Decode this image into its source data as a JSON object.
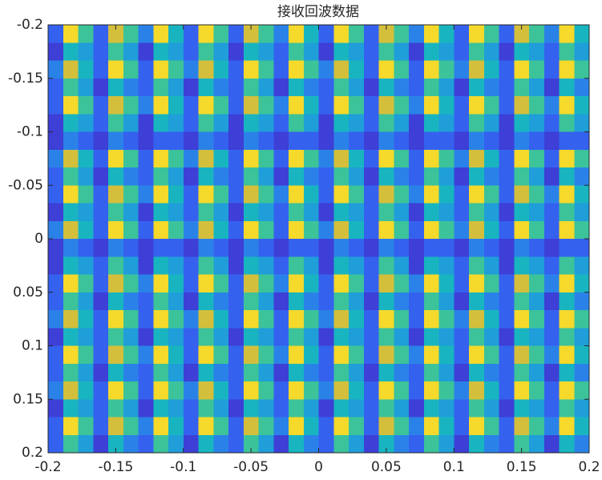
{
  "chart_data": {
    "type": "heatmap",
    "title": "接收回波数据",
    "xlim": [
      -0.2,
      0.2
    ],
    "ylim": [
      -0.2,
      0.2
    ],
    "ydir": "reverse",
    "xticks": [
      -0.2,
      -0.15,
      -0.1,
      -0.05,
      0,
      0.05,
      0.1,
      0.15,
      0.2
    ],
    "yticks": [
      -0.2,
      -0.15,
      -0.1,
      -0.05,
      0,
      0.05,
      0.1,
      0.15,
      0.2
    ],
    "clim": [
      0,
      9
    ],
    "colormap": [
      "#3b2ea8",
      "#3d3fd6",
      "#3561ef",
      "#2a82e8",
      "#1f9ed9",
      "#18b5c0",
      "#3cc39a",
      "#8ec66a",
      "#d3bf3c",
      "#f5d92b"
    ],
    "z": [
      [
        2,
        9,
        6,
        2,
        8,
        6,
        3,
        9,
        5,
        2,
        9,
        6,
        2,
        8,
        6,
        3,
        9,
        5,
        2,
        9,
        6,
        2,
        8,
        6,
        3,
        9,
        5,
        2,
        9,
        6,
        2,
        8,
        6,
        3,
        9,
        5
      ],
      [
        1,
        5,
        4,
        2,
        6,
        4,
        1,
        5,
        4,
        2,
        6,
        4,
        1,
        5,
        4,
        2,
        6,
        4,
        1,
        5,
        4,
        2,
        6,
        4,
        1,
        5,
        4,
        2,
        6,
        4,
        1,
        5,
        4,
        2,
        6,
        4
      ],
      [
        3,
        8,
        5,
        2,
        9,
        6,
        2,
        9,
        6,
        3,
        8,
        5,
        2,
        9,
        6,
        2,
        9,
        6,
        3,
        8,
        5,
        2,
        9,
        6,
        2,
        9,
        6,
        3,
        8,
        5,
        2,
        9,
        6,
        2,
        9,
        6
      ],
      [
        2,
        6,
        4,
        1,
        5,
        3,
        2,
        6,
        4,
        1,
        5,
        3,
        2,
        6,
        4,
        1,
        5,
        3,
        2,
        6,
        4,
        1,
        5,
        3,
        2,
        6,
        4,
        1,
        5,
        3,
        2,
        6,
        4,
        1,
        5,
        3
      ],
      [
        2,
        9,
        6,
        2,
        8,
        6,
        3,
        9,
        5,
        2,
        9,
        6,
        2,
        8,
        6,
        3,
        9,
        5,
        2,
        9,
        6,
        2,
        8,
        6,
        3,
        9,
        5,
        2,
        9,
        6,
        2,
        8,
        6,
        3,
        9,
        5
      ],
      [
        1,
        5,
        4,
        2,
        6,
        4,
        1,
        5,
        4,
        2,
        6,
        4,
        1,
        5,
        4,
        2,
        6,
        4,
        1,
        5,
        4,
        2,
        6,
        4,
        1,
        5,
        4,
        2,
        6,
        4,
        1,
        5,
        4,
        2,
        6,
        4
      ],
      [
        1,
        3,
        2,
        1,
        3,
        2,
        1,
        2,
        2,
        1,
        3,
        2,
        1,
        3,
        2,
        1,
        2,
        2,
        1,
        3,
        2,
        1,
        3,
        2,
        1,
        2,
        2,
        1,
        3,
        2,
        1,
        3,
        2,
        1,
        2,
        2
      ],
      [
        3,
        8,
        5,
        2,
        9,
        6,
        2,
        9,
        6,
        3,
        8,
        5,
        2,
        9,
        6,
        2,
        9,
        6,
        3,
        8,
        5,
        2,
        9,
        6,
        2,
        9,
        6,
        3,
        8,
        5,
        2,
        9,
        6,
        2,
        9,
        6
      ],
      [
        2,
        6,
        4,
        1,
        5,
        3,
        2,
        6,
        4,
        1,
        5,
        3,
        2,
        6,
        4,
        1,
        5,
        3,
        2,
        6,
        4,
        1,
        5,
        3,
        2,
        6,
        4,
        1,
        5,
        3,
        2,
        6,
        4,
        1,
        5,
        3
      ],
      [
        2,
        9,
        6,
        2,
        8,
        6,
        3,
        9,
        5,
        2,
        9,
        6,
        2,
        8,
        6,
        3,
        9,
        5,
        2,
        9,
        6,
        2,
        8,
        6,
        3,
        9,
        5,
        2,
        9,
        6,
        2,
        8,
        6,
        3,
        9,
        5
      ],
      [
        1,
        5,
        4,
        2,
        6,
        4,
        1,
        5,
        4,
        2,
        6,
        4,
        1,
        5,
        4,
        2,
        6,
        4,
        1,
        5,
        4,
        2,
        6,
        4,
        1,
        5,
        4,
        2,
        6,
        4,
        1,
        5,
        4,
        2,
        6,
        4
      ],
      [
        3,
        8,
        5,
        2,
        9,
        6,
        2,
        9,
        6,
        3,
        8,
        5,
        2,
        9,
        6,
        2,
        9,
        6,
        3,
        8,
        5,
        2,
        9,
        6,
        2,
        9,
        6,
        3,
        8,
        5,
        2,
        9,
        6,
        2,
        9,
        6
      ],
      [
        1,
        3,
        2,
        1,
        3,
        2,
        1,
        2,
        2,
        1,
        3,
        2,
        1,
        3,
        2,
        1,
        2,
        2,
        1,
        3,
        2,
        1,
        3,
        2,
        1,
        2,
        2,
        1,
        3,
        2,
        1,
        3,
        2,
        1,
        2,
        2
      ],
      [
        1,
        5,
        4,
        2,
        6,
        4,
        1,
        5,
        4,
        2,
        6,
        4,
        1,
        5,
        4,
        2,
        6,
        4,
        1,
        5,
        4,
        2,
        6,
        4,
        1,
        5,
        4,
        2,
        6,
        4,
        1,
        5,
        4,
        2,
        6,
        4
      ],
      [
        2,
        9,
        6,
        2,
        8,
        6,
        3,
        9,
        5,
        2,
        9,
        6,
        2,
        8,
        6,
        3,
        9,
        5,
        2,
        9,
        6,
        2,
        8,
        6,
        3,
        9,
        5,
        2,
        9,
        6,
        2,
        8,
        6,
        3,
        9,
        5
      ],
      [
        2,
        6,
        4,
        1,
        5,
        3,
        2,
        6,
        4,
        1,
        5,
        3,
        2,
        6,
        4,
        1,
        5,
        3,
        2,
        6,
        4,
        1,
        5,
        3,
        2,
        6,
        4,
        1,
        5,
        3,
        2,
        6,
        4,
        1,
        5,
        3
      ],
      [
        3,
        8,
        5,
        2,
        9,
        6,
        2,
        9,
        6,
        3,
        8,
        5,
        2,
        9,
        6,
        2,
        9,
        6,
        3,
        8,
        5,
        2,
        9,
        6,
        2,
        9,
        6,
        3,
        8,
        5,
        2,
        9,
        6,
        2,
        9,
        6
      ],
      [
        1,
        5,
        4,
        2,
        6,
        4,
        1,
        5,
        4,
        2,
        6,
        4,
        1,
        5,
        4,
        2,
        6,
        4,
        1,
        5,
        4,
        2,
        6,
        4,
        1,
        5,
        4,
        2,
        6,
        4,
        1,
        5,
        4,
        2,
        6,
        4
      ],
      [
        2,
        9,
        6,
        2,
        8,
        6,
        3,
        9,
        5,
        2,
        9,
        6,
        2,
        8,
        6,
        3,
        9,
        5,
        2,
        9,
        6,
        2,
        8,
        6,
        3,
        9,
        5,
        2,
        9,
        6,
        2,
        8,
        6,
        3,
        9,
        5
      ],
      [
        2,
        6,
        4,
        1,
        5,
        3,
        2,
        6,
        4,
        1,
        5,
        3,
        2,
        6,
        4,
        1,
        5,
        3,
        2,
        6,
        4,
        1,
        5,
        3,
        2,
        6,
        4,
        1,
        5,
        3,
        2,
        6,
        4,
        1,
        5,
        3
      ],
      [
        3,
        8,
        5,
        2,
        9,
        6,
        2,
        9,
        6,
        3,
        8,
        5,
        2,
        9,
        6,
        2,
        9,
        6,
        3,
        8,
        5,
        2,
        9,
        6,
        2,
        9,
        6,
        3,
        8,
        5,
        2,
        9,
        6,
        2,
        9,
        6
      ],
      [
        1,
        5,
        4,
        2,
        6,
        4,
        1,
        5,
        4,
        2,
        6,
        4,
        1,
        5,
        4,
        2,
        6,
        4,
        1,
        5,
        4,
        2,
        6,
        4,
        1,
        5,
        4,
        2,
        6,
        4,
        1,
        5,
        4,
        2,
        6,
        4
      ],
      [
        2,
        9,
        6,
        2,
        8,
        6,
        3,
        9,
        5,
        2,
        9,
        6,
        2,
        8,
        6,
        3,
        9,
        5,
        2,
        9,
        6,
        2,
        8,
        6,
        3,
        9,
        5,
        2,
        9,
        6,
        2,
        8,
        6,
        3,
        9,
        5
      ],
      [
        2,
        6,
        4,
        1,
        5,
        3,
        2,
        6,
        4,
        1,
        5,
        3,
        2,
        6,
        4,
        1,
        5,
        3,
        2,
        6,
        4,
        1,
        5,
        3,
        2,
        6,
        4,
        1,
        5,
        3,
        2,
        6,
        4,
        1,
        5,
        3
      ]
    ]
  }
}
